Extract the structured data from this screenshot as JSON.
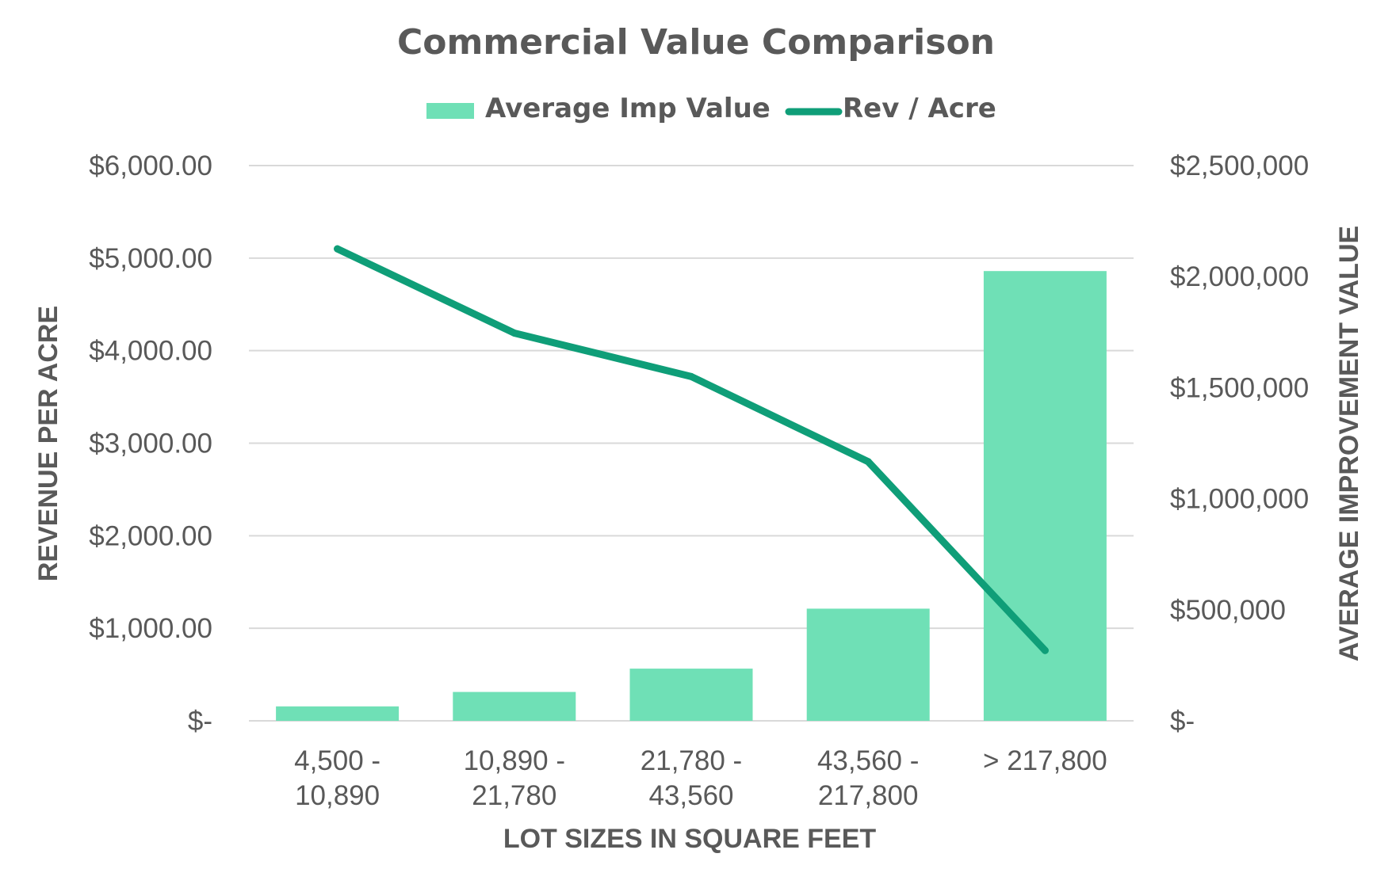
{
  "chart_data": {
    "type": "bar+line",
    "title": "Commercial Value Comparison",
    "categories": [
      [
        "4,500 -",
        "10,890"
      ],
      [
        "10,890 -",
        "21,780"
      ],
      [
        "21,780 -",
        "43,560"
      ],
      [
        "43,560 -",
        "217,800"
      ],
      [
        "> 217,800"
      ]
    ],
    "xlabel": "LOT SIZES IN SQUARE FEET",
    "ylabel_left": "REVENUE PER ACRE",
    "ylabel_right": "AVERAGE IMPROVEMENT VALUE",
    "left_axis": {
      "min": 0,
      "max": 6000,
      "step": 1000,
      "tick_labels": [
        "$-",
        "$1,000.00",
        "$2,000.00",
        "$3,000.00",
        "$4,000.00",
        "$5,000.00",
        "$6,000.00"
      ]
    },
    "right_axis": {
      "min": 0,
      "max": 2500000,
      "step": 500000,
      "tick_labels": [
        "$-",
        "$500,000",
        "$1,000,000",
        "$1,500,000",
        "$2,000,000",
        "$2,500,000"
      ]
    },
    "series": [
      {
        "name": "Average Imp Value",
        "type": "bar",
        "axis": "right",
        "color": "#6fe0b6",
        "values": [
          65000,
          130000,
          235000,
          505000,
          2025000
        ]
      },
      {
        "name": "Rev / Acre",
        "type": "line",
        "axis": "left",
        "color": "#0f9e78",
        "values": [
          5100,
          4190,
          3720,
          2800,
          760
        ]
      }
    ],
    "grid": true,
    "legend": "top-center"
  }
}
